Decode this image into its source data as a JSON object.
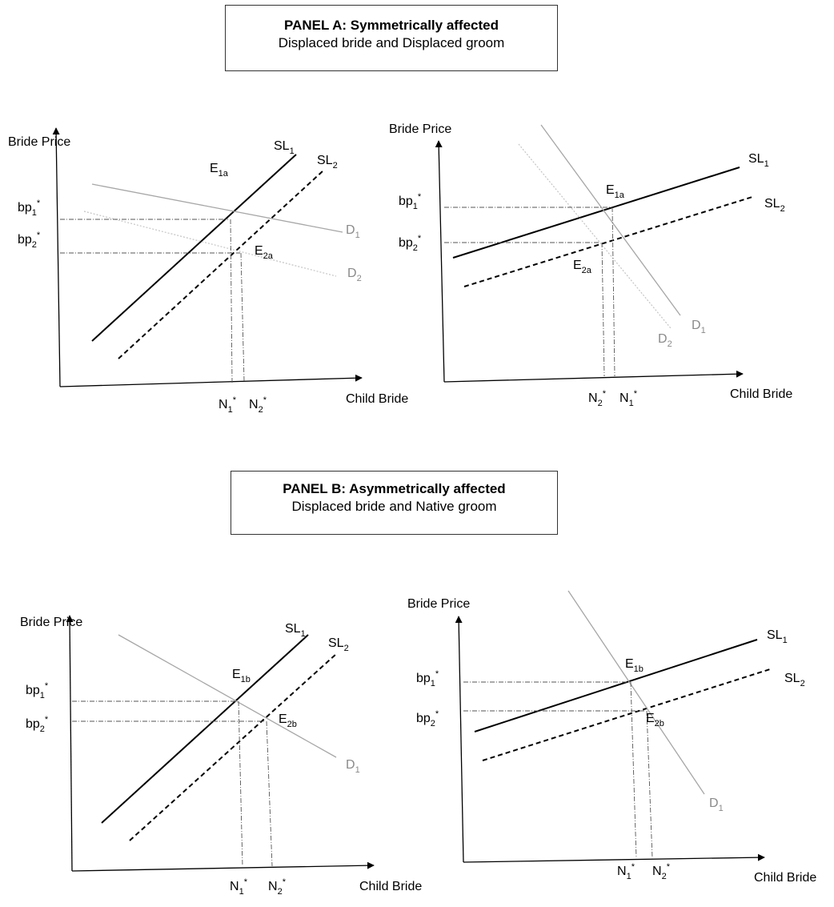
{
  "panel_a": {
    "title": "PANEL A: Symmetrically affected",
    "subtitle": "Displaced bride and Displaced groom"
  },
  "panel_b": {
    "title": "PANEL B: Asymmetrically affected",
    "subtitle": "Displaced bride and Native groom"
  },
  "axis": {
    "y_label": "Bride Price",
    "x_label": "Child Bride"
  },
  "labels": {
    "SL1": {
      "main": "SL",
      "sub": "1"
    },
    "SL2": {
      "main": "SL",
      "sub": "2"
    },
    "D1": {
      "main": "D",
      "sub": "1"
    },
    "D2": {
      "main": "D",
      "sub": "2"
    },
    "bp1": {
      "main": "bp",
      "sub": "1",
      "sup": "*"
    },
    "bp2": {
      "main": "bp",
      "sub": "2",
      "sup": "*"
    },
    "N1": {
      "main": "N",
      "sub": "1",
      "sup": "*"
    },
    "N2": {
      "main": "N",
      "sub": "2",
      "sup": "*"
    },
    "E1a": {
      "main": "E",
      "sub": "1a"
    },
    "E2a": {
      "main": "E",
      "sub": "2a"
    },
    "E1b": {
      "main": "E",
      "sub": "1b"
    },
    "E2b": {
      "main": "E",
      "sub": "2b"
    }
  },
  "colors": {
    "supply": "#000000",
    "demand": "#a6a6a6",
    "demand_shifted": "#c4c4c4",
    "guide": "#555555",
    "label_gray": "#8a8a8a"
  }
}
